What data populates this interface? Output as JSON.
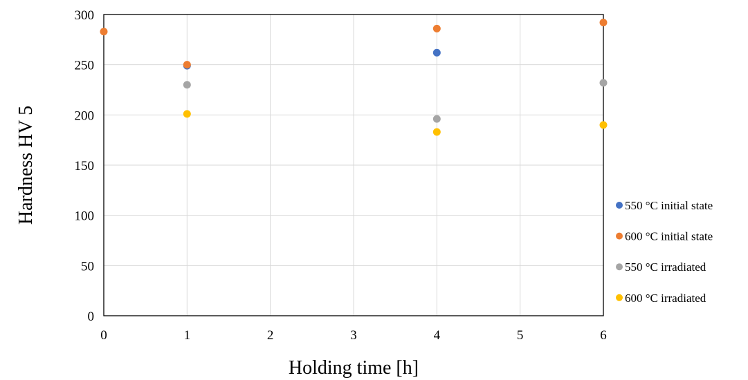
{
  "chart_data": {
    "type": "scatter",
    "xlabel": "Holding time [h]",
    "ylabel": "Hardness HV 5",
    "xlim": [
      0,
      6
    ],
    "ylim": [
      0,
      300
    ],
    "xticks": [
      0,
      1,
      2,
      3,
      4,
      5,
      6
    ],
    "yticks": [
      0,
      50,
      100,
      150,
      200,
      250,
      300
    ],
    "grid": "vertical",
    "legend_position": "right",
    "series": [
      {
        "name": "550 °C initial state",
        "color": "#4472C4",
        "points": [
          {
            "x": 1,
            "y": 249
          },
          {
            "x": 4,
            "y": 262
          }
        ]
      },
      {
        "name": "600 °C initial state",
        "color": "#ED7D31",
        "points": [
          {
            "x": 0,
            "y": 283
          },
          {
            "x": 1,
            "y": 250
          },
          {
            "x": 4,
            "y": 286
          },
          {
            "x": 6,
            "y": 292
          }
        ]
      },
      {
        "name": "550 °C irradiated",
        "color": "#A5A5A5",
        "points": [
          {
            "x": 1,
            "y": 230
          },
          {
            "x": 4,
            "y": 196
          },
          {
            "x": 6,
            "y": 232
          }
        ]
      },
      {
        "name": "600 °C irradiated",
        "color": "#FFC000",
        "points": [
          {
            "x": 1,
            "y": 201
          },
          {
            "x": 4,
            "y": 183
          },
          {
            "x": 6,
            "y": 190
          }
        ]
      }
    ]
  }
}
